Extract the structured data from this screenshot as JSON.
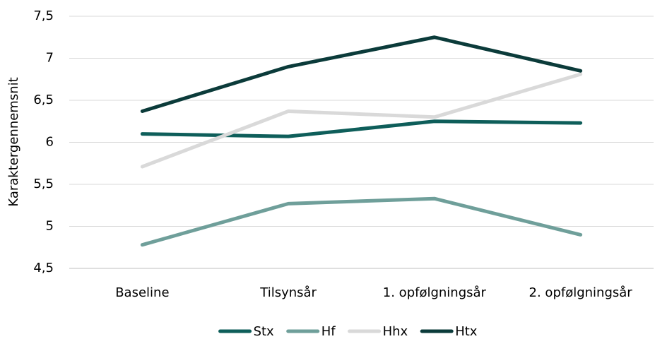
{
  "chart_data": {
    "type": "line",
    "ylabel": "Karaktergennemsnit",
    "categories": [
      "Baseline",
      "Tilsynsår",
      "1. opfølgningsår",
      "2. opfølgningsår"
    ],
    "series": [
      {
        "name": "Stx",
        "color": "#0e5e5a",
        "values": [
          6.1,
          6.07,
          6.25,
          6.23
        ]
      },
      {
        "name": "Hf",
        "color": "#6f9f9a",
        "values": [
          4.78,
          5.27,
          5.33,
          4.9
        ]
      },
      {
        "name": "Hhx",
        "color": "#d9d9d9",
        "values": [
          5.71,
          6.37,
          6.3,
          6.81
        ]
      },
      {
        "name": "Htx",
        "color": "#0b3b3a",
        "values": [
          6.37,
          6.9,
          7.25,
          6.85
        ]
      }
    ],
    "ylim": [
      4.5,
      7.5
    ],
    "yticks": [
      {
        "value": 4.5,
        "label": "4,5"
      },
      5,
      {
        "value": 5.5,
        "label": "5,5"
      },
      6,
      {
        "value": 6.5,
        "label": "6,5"
      },
      7,
      {
        "value": 7.5,
        "label": "7,5"
      }
    ],
    "grid": true,
    "legend": "bottom"
  }
}
